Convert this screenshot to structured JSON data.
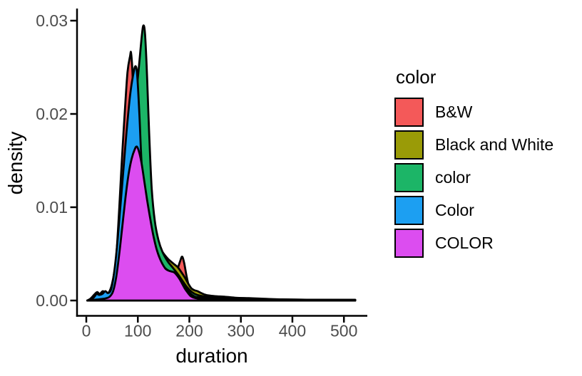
{
  "chart_data": {
    "type": "area",
    "subtype": "overlaid-density-curves",
    "title": "",
    "xlabel": "duration",
    "ylabel": "density",
    "x_ticks": [
      0,
      100,
      200,
      300,
      400,
      500
    ],
    "y_ticks": [
      0.0,
      0.01,
      0.02,
      0.03
    ],
    "y_tick_labels": [
      "0.00",
      "0.01",
      "0.02",
      "0.03"
    ],
    "xlim": [
      0,
      500
    ],
    "ylim": [
      0,
      0.03
    ],
    "grid": false,
    "outline_color": "#000000",
    "tick_label_color": "#4d4d4d",
    "legend_position": "right",
    "series": [
      {
        "name": "B&W",
        "color": "#f45959",
        "peak": {
          "x": 87,
          "y": 0.0265
        },
        "points": [
          [
            2,
            0
          ],
          [
            10,
            0.0002
          ],
          [
            20,
            0.0004
          ],
          [
            30,
            0.0004
          ],
          [
            40,
            0.0005
          ],
          [
            50,
            0.0015
          ],
          [
            57,
            0.004
          ],
          [
            62,
            0.008
          ],
          [
            66,
            0.012
          ],
          [
            70,
            0.016
          ],
          [
            75,
            0.0205
          ],
          [
            80,
            0.0245
          ],
          [
            85,
            0.0262
          ],
          [
            87,
            0.0265
          ],
          [
            90,
            0.024
          ],
          [
            93,
            0.019
          ],
          [
            96,
            0.014
          ],
          [
            100,
            0.01
          ],
          [
            105,
            0.0075
          ],
          [
            112,
            0.006
          ],
          [
            120,
            0.0052
          ],
          [
            130,
            0.0046
          ],
          [
            140,
            0.004
          ],
          [
            150,
            0.0036
          ],
          [
            160,
            0.0033
          ],
          [
            170,
            0.0032
          ],
          [
            176,
            0.0033
          ],
          [
            182,
            0.0042
          ],
          [
            186,
            0.0047
          ],
          [
            190,
            0.004
          ],
          [
            195,
            0.0025
          ],
          [
            200,
            0.0014
          ],
          [
            207,
            0.0008
          ],
          [
            215,
            0.0005
          ],
          [
            225,
            0.0004
          ],
          [
            240,
            0.0003
          ],
          [
            260,
            0.0002
          ],
          [
            290,
            0.00015
          ],
          [
            340,
            0.0001
          ],
          [
            420,
            8e-05
          ],
          [
            522,
            6e-05
          ]
        ]
      },
      {
        "name": "Black and White",
        "color": "#9a9b07",
        "peak": {
          "x": 98,
          "y": 0.0215
        },
        "points": [
          [
            2,
            0
          ],
          [
            8,
            0.0002
          ],
          [
            15,
            0.0006
          ],
          [
            21,
            0.0009
          ],
          [
            26,
            0.0007
          ],
          [
            32,
            0.001
          ],
          [
            38,
            0.0008
          ],
          [
            44,
            0.0009
          ],
          [
            50,
            0.0018
          ],
          [
            57,
            0.004
          ],
          [
            64,
            0.008
          ],
          [
            71,
            0.012
          ],
          [
            78,
            0.016
          ],
          [
            86,
            0.019
          ],
          [
            93,
            0.021
          ],
          [
            98,
            0.0215
          ],
          [
            103,
            0.02
          ],
          [
            108,
            0.017
          ],
          [
            114,
            0.013
          ],
          [
            121,
            0.01
          ],
          [
            129,
            0.0078
          ],
          [
            138,
            0.0062
          ],
          [
            148,
            0.0052
          ],
          [
            158,
            0.0045
          ],
          [
            168,
            0.004
          ],
          [
            177,
            0.0036
          ],
          [
            185,
            0.003
          ],
          [
            192,
            0.0024
          ],
          [
            198,
            0.0018
          ],
          [
            204,
            0.0013
          ],
          [
            210,
            0.0011
          ],
          [
            216,
            0.001
          ],
          [
            223,
            0.0008
          ],
          [
            232,
            0.0006
          ],
          [
            243,
            0.0005
          ],
          [
            255,
            0.00045
          ],
          [
            270,
            0.0004
          ],
          [
            290,
            0.0003
          ],
          [
            315,
            0.00025
          ],
          [
            340,
            0.0002
          ],
          [
            380,
            0.00012
          ],
          [
            440,
            8e-05
          ],
          [
            522,
            6e-05
          ]
        ]
      },
      {
        "name": "color",
        "color": "#1cb567",
        "peak": {
          "x": 111,
          "y": 0.0295
        },
        "points": [
          [
            2,
            0
          ],
          [
            15,
            0.0001
          ],
          [
            30,
            0.0002
          ],
          [
            42,
            0.0004
          ],
          [
            50,
            0.0008
          ],
          [
            58,
            0.002
          ],
          [
            65,
            0.005
          ],
          [
            72,
            0.009
          ],
          [
            80,
            0.013
          ],
          [
            88,
            0.017
          ],
          [
            95,
            0.021
          ],
          [
            102,
            0.025
          ],
          [
            108,
            0.0285
          ],
          [
            111,
            0.0295
          ],
          [
            114,
            0.0285
          ],
          [
            118,
            0.024
          ],
          [
            122,
            0.018
          ],
          [
            127,
            0.012
          ],
          [
            133,
            0.0085
          ],
          [
            140,
            0.0065
          ],
          [
            148,
            0.0052
          ],
          [
            158,
            0.0042
          ],
          [
            168,
            0.0035
          ],
          [
            178,
            0.0028
          ],
          [
            188,
            0.002
          ],
          [
            196,
            0.0014
          ],
          [
            205,
            0.0009
          ],
          [
            215,
            0.0006
          ],
          [
            228,
            0.00045
          ],
          [
            245,
            0.00035
          ],
          [
            265,
            0.00028
          ],
          [
            290,
            0.0002
          ],
          [
            320,
            0.00015
          ],
          [
            380,
            0.0001
          ],
          [
            522,
            6e-05
          ]
        ]
      },
      {
        "name": "Color",
        "color": "#1c9ff2",
        "peak": {
          "x": 96,
          "y": 0.0251
        },
        "points": [
          [
            2,
            0
          ],
          [
            8,
            0.0001
          ],
          [
            14,
            0.0003
          ],
          [
            20,
            0.0007
          ],
          [
            25,
            0.0006
          ],
          [
            31,
            0.0007
          ],
          [
            37,
            0.001
          ],
          [
            42,
            0.0008
          ],
          [
            48,
            0.0012
          ],
          [
            54,
            0.003
          ],
          [
            60,
            0.006
          ],
          [
            66,
            0.01
          ],
          [
            72,
            0.014
          ],
          [
            78,
            0.018
          ],
          [
            85,
            0.022
          ],
          [
            92,
            0.0245
          ],
          [
            96,
            0.0251
          ],
          [
            99,
            0.024
          ],
          [
            103,
            0.02
          ],
          [
            107,
            0.015
          ],
          [
            112,
            0.011
          ],
          [
            118,
            0.008
          ],
          [
            125,
            0.006
          ],
          [
            133,
            0.0048
          ],
          [
            142,
            0.004
          ],
          [
            152,
            0.0035
          ],
          [
            162,
            0.0031
          ],
          [
            172,
            0.0028
          ],
          [
            180,
            0.0024
          ],
          [
            188,
            0.0018
          ],
          [
            195,
            0.0012
          ],
          [
            203,
            0.0007
          ],
          [
            212,
            0.0004
          ],
          [
            225,
            0.0003
          ],
          [
            245,
            0.0002
          ],
          [
            280,
            0.00012
          ],
          [
            340,
            8e-05
          ],
          [
            522,
            5e-05
          ]
        ]
      },
      {
        "name": "COLOR",
        "color": "#dc4df0",
        "peak": {
          "x": 98,
          "y": 0.0165
        },
        "points": [
          [
            2,
            0
          ],
          [
            20,
            0.0001
          ],
          [
            35,
            0.0002
          ],
          [
            45,
            0.0004
          ],
          [
            52,
            0.001
          ],
          [
            58,
            0.0025
          ],
          [
            64,
            0.005
          ],
          [
            70,
            0.008
          ],
          [
            76,
            0.011
          ],
          [
            82,
            0.0135
          ],
          [
            88,
            0.0152
          ],
          [
            94,
            0.0162
          ],
          [
            98,
            0.0165
          ],
          [
            102,
            0.016
          ],
          [
            107,
            0.0148
          ],
          [
            112,
            0.013
          ],
          [
            118,
            0.0108
          ],
          [
            124,
            0.0088
          ],
          [
            130,
            0.007
          ],
          [
            136,
            0.0056
          ],
          [
            142,
            0.0046
          ],
          [
            148,
            0.0039
          ],
          [
            154,
            0.0034
          ],
          [
            160,
            0.0032
          ],
          [
            166,
            0.0031
          ],
          [
            171,
            0.003
          ],
          [
            176,
            0.0027
          ],
          [
            181,
            0.0023
          ],
          [
            186,
            0.0018
          ],
          [
            191,
            0.0013
          ],
          [
            196,
            0.0009
          ],
          [
            202,
            0.0005
          ],
          [
            209,
            0.0003
          ],
          [
            218,
            0.0002
          ],
          [
            235,
            0.0001
          ],
          [
            270,
            6e-05
          ],
          [
            350,
            4e-05
          ],
          [
            522,
            3e-05
          ]
        ]
      }
    ]
  },
  "legend": {
    "title": "color",
    "items": [
      {
        "label": "B&W",
        "color": "#f45959"
      },
      {
        "label": "Black and White",
        "color": "#9a9b07"
      },
      {
        "label": "color",
        "color": "#1cb567"
      },
      {
        "label": "Color",
        "color": "#1c9ff2"
      },
      {
        "label": "COLOR",
        "color": "#dc4df0"
      }
    ]
  }
}
